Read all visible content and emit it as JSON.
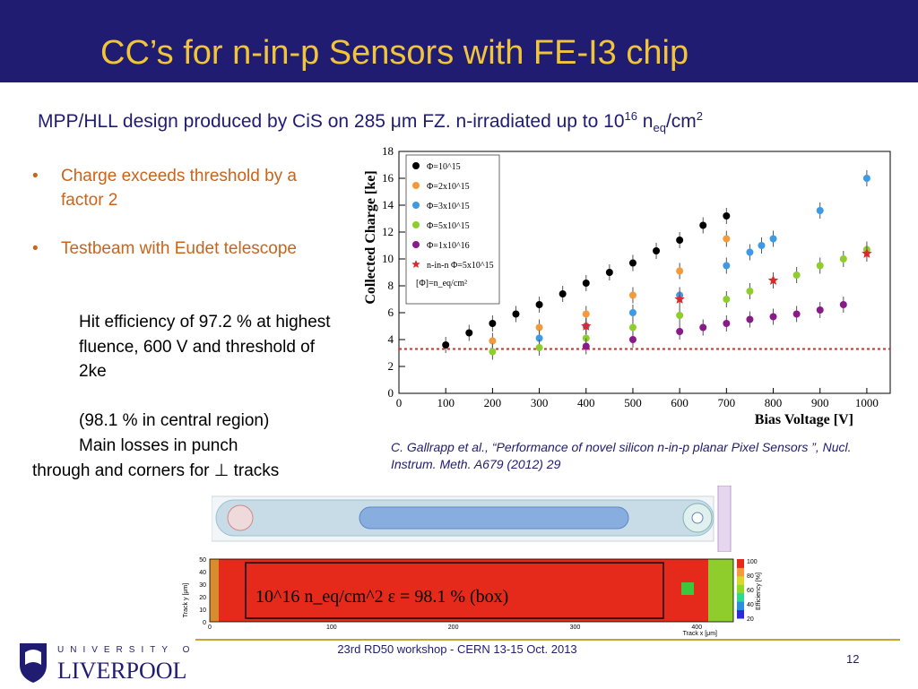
{
  "slide": {
    "title": "CC’s for  n-in-p Sensors with FE-I3 chip",
    "subtitle_main": "MPP/HLL design produced by CiS on 285 μm FZ. n-irradiated up to 10",
    "subtitle_sup1": "16",
    "subtitle_n": " n",
    "subtitle_sub": "eq",
    "subtitle_cm": "/cm",
    "subtitle_sup2": "2",
    "bullet_symbol": "•",
    "bullets": [
      "Charge exceeds threshold by a factor 2",
      "Testbeam with Eudet telescope"
    ],
    "para1": "Hit efficiency of 97.2 % at highest fluence, 600 V and threshold of 2ke",
    "para2_line1": "(98.1 % in central region)",
    "para2_line2": "Main losses in punch",
    "para3": "through    and corners for ⊥ tracks",
    "citation": "C. Gallrapp et al., “Performance of novel silicon n-in-p planar Pixel Sensors ”, Nucl. Instrum. Meth. A679 (2012) 29",
    "footer_text": "23rd RD50 workshop - CERN 13-15 Oct. 2013",
    "page_number": "12",
    "logo_university": "UNIVERSITY OF",
    "logo_name": "LIVERPOOL",
    "colors": {
      "header": "#1f1c72",
      "title": "#f2c43a",
      "bullet": "#c8641c",
      "footer_line": "#c8a13a"
    }
  },
  "chart_data": [
    {
      "type": "scatter",
      "xlabel": "Bias Voltage [V]",
      "ylabel": "Collected Charge [ke]",
      "xlim": [
        0,
        1050
      ],
      "ylim": [
        0,
        18
      ],
      "xticks": [
        0,
        100,
        200,
        300,
        400,
        500,
        600,
        700,
        800,
        900,
        1000
      ],
      "yticks": [
        0,
        2,
        4,
        6,
        8,
        10,
        12,
        14,
        16,
        18
      ],
      "threshold_line": 3.3,
      "legend_position": "top-left",
      "legend_note": "[Φ]=n_eq/cm²",
      "series": [
        {
          "name": "Φ=10^15",
          "color": "#000000",
          "marker": "circle",
          "x": [
            100,
            150,
            200,
            250,
            300,
            350,
            400,
            450,
            500,
            550,
            600,
            650,
            700
          ],
          "y": [
            3.6,
            4.5,
            5.2,
            5.9,
            6.6,
            7.4,
            8.2,
            9.0,
            9.7,
            10.6,
            11.4,
            12.5,
            13.2
          ]
        },
        {
          "name": "Φ=2x10^15",
          "color": "#f39a3c",
          "marker": "circle",
          "x": [
            200,
            300,
            400,
            500,
            600,
            700
          ],
          "y": [
            3.9,
            4.9,
            5.9,
            7.3,
            9.1,
            11.5
          ]
        },
        {
          "name": "Φ=3x10^15",
          "color": "#3c9ae6",
          "marker": "circle",
          "x": [
            300,
            400,
            500,
            600,
            700,
            750,
            775,
            800,
            900,
            1000
          ],
          "y": [
            4.1,
            5.0,
            6.0,
            7.3,
            9.5,
            10.5,
            11.0,
            11.5,
            13.6,
            16.0
          ]
        },
        {
          "name": "Φ=5x10^15",
          "color": "#8fcd2d",
          "marker": "circle",
          "x": [
            200,
            300,
            400,
            500,
            600,
            700,
            750,
            850,
            900,
            950,
            1000
          ],
          "y": [
            3.1,
            3.4,
            4.1,
            4.9,
            5.8,
            7.0,
            7.6,
            8.8,
            9.5,
            10.0,
            10.7
          ]
        },
        {
          "name": "Φ=1x10^16",
          "color": "#8a1a8a",
          "marker": "circle",
          "x": [
            400,
            500,
            600,
            650,
            700,
            750,
            800,
            850,
            900,
            950
          ],
          "y": [
            3.5,
            4.0,
            4.6,
            4.9,
            5.2,
            5.5,
            5.7,
            5.9,
            6.2,
            6.6
          ]
        },
        {
          "name": "n-in-n Φ=5x10^15",
          "color": "#d92b2b",
          "marker": "star",
          "x": [
            400,
            600,
            800,
            1000
          ],
          "y": [
            5.0,
            7.0,
            8.4,
            10.4
          ]
        }
      ]
    },
    {
      "type": "heatmap",
      "xlabel": "Track x [μm]",
      "ylabel": "Track y [μm]",
      "xticks": [
        0,
        100,
        200,
        300,
        400
      ],
      "yticks": [
        0,
        10,
        20,
        30,
        40,
        50
      ],
      "colorbar_label": "Efficiency [%]",
      "colorbar_ticks": [
        20,
        40,
        60,
        80,
        100
      ],
      "annotation": "10^16 n_eq/cm^2    ε = 98.1 % (box)"
    }
  ]
}
